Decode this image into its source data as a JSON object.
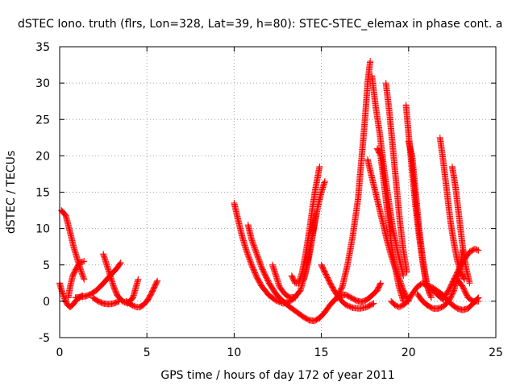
{
  "chart_data": {
    "type": "scatter",
    "title": "dSTEC Iono. truth (flrs, Lon=328, Lat=39, h=80): STEC-STEC_elemax in phase cont. a",
    "xlabel": "GPS time / hours of day 172 of year 2011",
    "ylabel": "dSTEC  / TECUs",
    "xlim": [
      0,
      25
    ],
    "ylim": [
      -5,
      35
    ],
    "x_ticks": [
      "0",
      "5",
      "10",
      "15",
      "20",
      "25"
    ],
    "y_ticks": [
      "-5",
      "0",
      "5",
      "10",
      "15",
      "20",
      "25",
      "30",
      "35"
    ],
    "grid": true,
    "marker": "+",
    "color": "#ff0000",
    "series": [
      {
        "x": [
          0.1,
          0.35,
          0.6,
          0.8,
          1.05,
          1.25,
          1.4
        ],
        "y": [
          12.5,
          11.8,
          9.5,
          7.5,
          5.5,
          4.0,
          3.0
        ]
      },
      {
        "x": [
          0.0,
          0.15,
          0.3,
          0.45,
          0.6,
          0.75,
          1.0,
          1.3
        ],
        "y": [
          2.5,
          1.2,
          0.2,
          -0.5,
          -0.8,
          -0.5,
          0.3,
          0.8
        ]
      },
      {
        "x": [
          0.5,
          0.6,
          0.75,
          0.95,
          1.15,
          1.4
        ],
        "y": [
          0.5,
          2.0,
          3.5,
          4.5,
          5.3,
          5.5
        ]
      },
      {
        "x": [
          0.9,
          1.2,
          1.5,
          1.8,
          2.1,
          2.4,
          2.7,
          3.0,
          3.3,
          3.5
        ],
        "y": [
          0.5,
          0.6,
          0.7,
          1.0,
          1.5,
          2.2,
          3.0,
          3.8,
          4.6,
          5.3
        ]
      },
      {
        "x": [
          2.5,
          2.7,
          2.9,
          3.1,
          3.3,
          3.6,
          3.9,
          4.2,
          4.5
        ],
        "y": [
          6.5,
          5.0,
          3.5,
          2.0,
          0.8,
          0.0,
          -0.3,
          0.5,
          3.0
        ]
      },
      {
        "x": [
          1.9,
          2.2,
          2.5,
          2.8,
          3.1,
          3.4
        ],
        "y": [
          0.5,
          0.0,
          -0.3,
          -0.4,
          -0.3,
          0.0
        ]
      },
      {
        "x": [
          3.8,
          4.0,
          4.2,
          4.4,
          4.6,
          4.8,
          5.0,
          5.2,
          5.4,
          5.6
        ],
        "y": [
          0.0,
          -0.3,
          -0.6,
          -0.8,
          -0.8,
          -0.5,
          0.0,
          0.8,
          1.8,
          2.8
        ]
      },
      {
        "x": [
          10.0,
          10.2,
          10.45,
          10.7,
          11.0,
          11.3,
          11.6,
          12.0,
          12.4,
          12.8,
          13.2,
          13.5
        ],
        "y": [
          13.5,
          11.5,
          9.0,
          7.0,
          5.0,
          3.3,
          2.0,
          0.8,
          0.1,
          -0.3,
          0.0,
          0.5
        ]
      },
      {
        "x": [
          10.8,
          11.0,
          11.3,
          11.6,
          12.0,
          12.4,
          12.8,
          13.2,
          13.6,
          14.0,
          14.3,
          14.6,
          14.9
        ],
        "y": [
          10.5,
          8.5,
          6.5,
          4.5,
          2.5,
          1.0,
          0.0,
          -0.8,
          -1.5,
          -2.2,
          -2.6,
          -2.7,
          -2.3
        ]
      },
      {
        "x": [
          12.2,
          12.4,
          12.6,
          12.9,
          13.2,
          13.5,
          13.8,
          14.1,
          14.4,
          14.7
        ],
        "y": [
          5.0,
          3.5,
          2.0,
          1.0,
          0.5,
          0.6,
          1.5,
          4.0,
          8.0,
          12.0
        ]
      },
      {
        "x": [
          13.3,
          13.5,
          13.7,
          13.9,
          14.1,
          14.3,
          14.5,
          14.7,
          14.9
        ],
        "y": [
          3.5,
          2.5,
          2.5,
          4.0,
          6.5,
          9.5,
          13.0,
          16.0,
          18.5
        ]
      },
      {
        "x": [
          14.0,
          14.2,
          14.4,
          14.6,
          14.8,
          15.0,
          15.2
        ],
        "y": [
          3.0,
          5.0,
          7.5,
          10.5,
          13.0,
          15.0,
          16.5
        ]
      },
      {
        "x": [
          14.9,
          15.2,
          15.5,
          15.8,
          16.1,
          16.4,
          16.7,
          17.0,
          17.3,
          17.6,
          17.9,
          18.2,
          18.4
        ],
        "y": [
          -2.3,
          -1.5,
          -0.5,
          0.3,
          0.8,
          0.9,
          0.5,
          0.1,
          -0.1,
          0.2,
          0.8,
          1.5,
          2.5
        ]
      },
      {
        "x": [
          15.0,
          15.2,
          15.5,
          15.8,
          16.1,
          16.4,
          16.8,
          17.2,
          17.6,
          18.0
        ],
        "y": [
          5.0,
          4.0,
          2.5,
          1.2,
          0.2,
          -0.5,
          -0.9,
          -1.0,
          -0.8,
          -0.3
        ]
      },
      {
        "x": [
          15.9,
          16.2,
          16.5,
          16.8,
          17.1,
          17.3,
          17.5,
          17.65,
          17.8
        ],
        "y": [
          0.5,
          2.0,
          5.0,
          9.0,
          14.0,
          19.5,
          25.0,
          30.0,
          33.0
        ]
      },
      {
        "x": [
          17.65,
          17.9,
          18.2,
          18.5,
          18.8,
          19.1,
          19.4,
          19.7,
          20.0
        ],
        "y": [
          19.5,
          17.0,
          14.0,
          11.0,
          8.0,
          5.5,
          3.5,
          1.5,
          0.0
        ]
      },
      {
        "x": [
          17.9,
          18.1,
          18.35,
          18.6,
          18.85,
          19.1,
          19.4,
          19.7
        ],
        "y": [
          31.0,
          27.0,
          23.0,
          18.0,
          14.0,
          10.0,
          6.5,
          3.5
        ]
      },
      {
        "x": [
          18.2,
          18.4,
          18.6,
          18.8,
          19.0,
          19.2,
          19.45,
          19.7
        ],
        "y": [
          21.0,
          20.0,
          16.0,
          12.0,
          8.0,
          5.0,
          2.0,
          0.0
        ]
      },
      {
        "x": [
          18.7,
          18.9,
          19.1,
          19.3,
          19.5,
          19.7,
          19.9
        ],
        "y": [
          30.0,
          26.0,
          21.0,
          16.0,
          11.0,
          7.0,
          4.0
        ]
      },
      {
        "x": [
          19.0,
          19.2,
          19.45,
          19.7,
          19.95,
          20.2,
          20.5,
          20.8,
          21.2,
          21.6,
          22.0
        ],
        "y": [
          0.0,
          -0.5,
          -0.8,
          -0.5,
          0.0,
          1.0,
          2.0,
          2.5,
          2.0,
          1.0,
          0.2
        ]
      },
      {
        "x": [
          19.85,
          20.0,
          20.2,
          20.4,
          20.6,
          20.8,
          21.0,
          21.3
        ],
        "y": [
          27.0,
          23.0,
          18.0,
          13.0,
          9.0,
          5.5,
          2.5,
          0.5
        ]
      },
      {
        "x": [
          20.0,
          20.2,
          20.4,
          20.6,
          20.8,
          21.0,
          21.2
        ],
        "y": [
          22.0,
          20.0,
          15.0,
          10.0,
          6.0,
          3.0,
          1.0
        ]
      },
      {
        "x": [
          20.5,
          20.8,
          21.1,
          21.4,
          21.7,
          22.0,
          22.3,
          22.6,
          22.9,
          23.1
        ],
        "y": [
          1.0,
          0.0,
          -0.6,
          -1.0,
          -1.0,
          -0.7,
          0.0,
          1.5,
          4.0,
          7.0
        ]
      },
      {
        "x": [
          21.3,
          21.6,
          21.9,
          22.2,
          22.5,
          22.8,
          23.1,
          23.4,
          23.7,
          24.0
        ],
        "y": [
          2.0,
          1.5,
          1.0,
          0.2,
          -0.5,
          -1.0,
          -1.2,
          -1.0,
          -0.3,
          0.5
        ]
      },
      {
        "x": [
          21.8,
          22.0,
          22.2,
          22.4,
          22.6,
          22.8,
          23.0,
          23.2
        ],
        "y": [
          22.5,
          19.0,
          15.0,
          11.0,
          8.0,
          5.5,
          4.0,
          3.0
        ]
      },
      {
        "x": [
          22.5,
          22.7,
          22.9,
          23.1,
          23.3,
          23.5
        ],
        "y": [
          18.5,
          15.5,
          11.5,
          7.5,
          4.5,
          2.5
        ]
      },
      {
        "x": [
          22.8,
          23.1,
          23.4,
          23.7,
          24.0
        ],
        "y": [
          3.0,
          2.0,
          0.5,
          0.0,
          0.0
        ]
      },
      {
        "x": [
          22.0,
          22.3,
          22.6,
          22.9,
          23.2,
          23.5,
          23.8,
          24.0
        ],
        "y": [
          0.5,
          1.5,
          3.0,
          4.5,
          5.8,
          6.8,
          7.2,
          7.0
        ]
      }
    ]
  }
}
